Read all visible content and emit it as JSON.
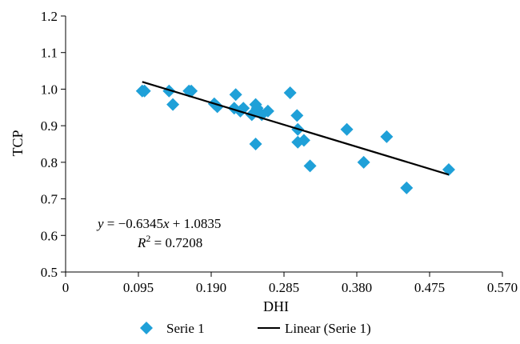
{
  "chart_data": {
    "type": "scatter",
    "xlabel": "DHI",
    "ylabel": "TCP",
    "xlim": [
      0,
      0.57
    ],
    "ylim": [
      0.5,
      1.2
    ],
    "x_ticks": [
      "0",
      "0.095",
      "0.190",
      "0.285",
      "0.380",
      "0.475",
      "0.570"
    ],
    "y_ticks": [
      "0.5",
      "0.6",
      "0.7",
      "0.8",
      "0.9",
      "1.0",
      "1.1",
      "1.2"
    ],
    "x_tick_values": [
      0,
      0.095,
      0.19,
      0.285,
      0.38,
      0.475,
      0.57
    ],
    "y_tick_values": [
      0.5,
      0.6,
      0.7,
      0.8,
      0.9,
      1.0,
      1.1,
      1.2
    ],
    "grid": false,
    "legend_position": "bottom",
    "series": [
      {
        "name": "Serie 1",
        "kind": "scatter",
        "marker": "diamond",
        "color": "#1fa0d8",
        "points": [
          [
            0.1,
            0.995
          ],
          [
            0.103,
            0.995
          ],
          [
            0.135,
            0.995
          ],
          [
            0.14,
            0.958
          ],
          [
            0.161,
            0.995
          ],
          [
            0.164,
            0.995
          ],
          [
            0.194,
            0.96
          ],
          [
            0.198,
            0.952
          ],
          [
            0.22,
            0.948
          ],
          [
            0.222,
            0.985
          ],
          [
            0.228,
            0.94
          ],
          [
            0.232,
            0.948
          ],
          [
            0.243,
            0.93
          ],
          [
            0.248,
            0.958
          ],
          [
            0.25,
            0.948
          ],
          [
            0.256,
            0.93
          ],
          [
            0.264,
            0.94
          ],
          [
            0.248,
            0.85
          ],
          [
            0.293,
            0.99
          ],
          [
            0.302,
            0.928
          ],
          [
            0.303,
            0.89
          ],
          [
            0.303,
            0.855
          ],
          [
            0.311,
            0.86
          ],
          [
            0.319,
            0.79
          ],
          [
            0.367,
            0.89
          ],
          [
            0.389,
            0.8
          ],
          [
            0.419,
            0.87
          ],
          [
            0.445,
            0.73
          ],
          [
            0.5,
            0.78
          ]
        ]
      },
      {
        "name": "Linear (Serie 1)",
        "kind": "line",
        "color": "#000000",
        "x_range": [
          0.1,
          0.5
        ],
        "slope": -0.6345,
        "intercept": 1.0835
      }
    ],
    "annotations": {
      "equation_y": "y",
      "equation_x": "x",
      "equation_text": " = −0.6345",
      "equation_tail": " + 1.0835",
      "r2_label": "R",
      "r2_sup": "2",
      "r2_text": " = 0.7208"
    }
  }
}
